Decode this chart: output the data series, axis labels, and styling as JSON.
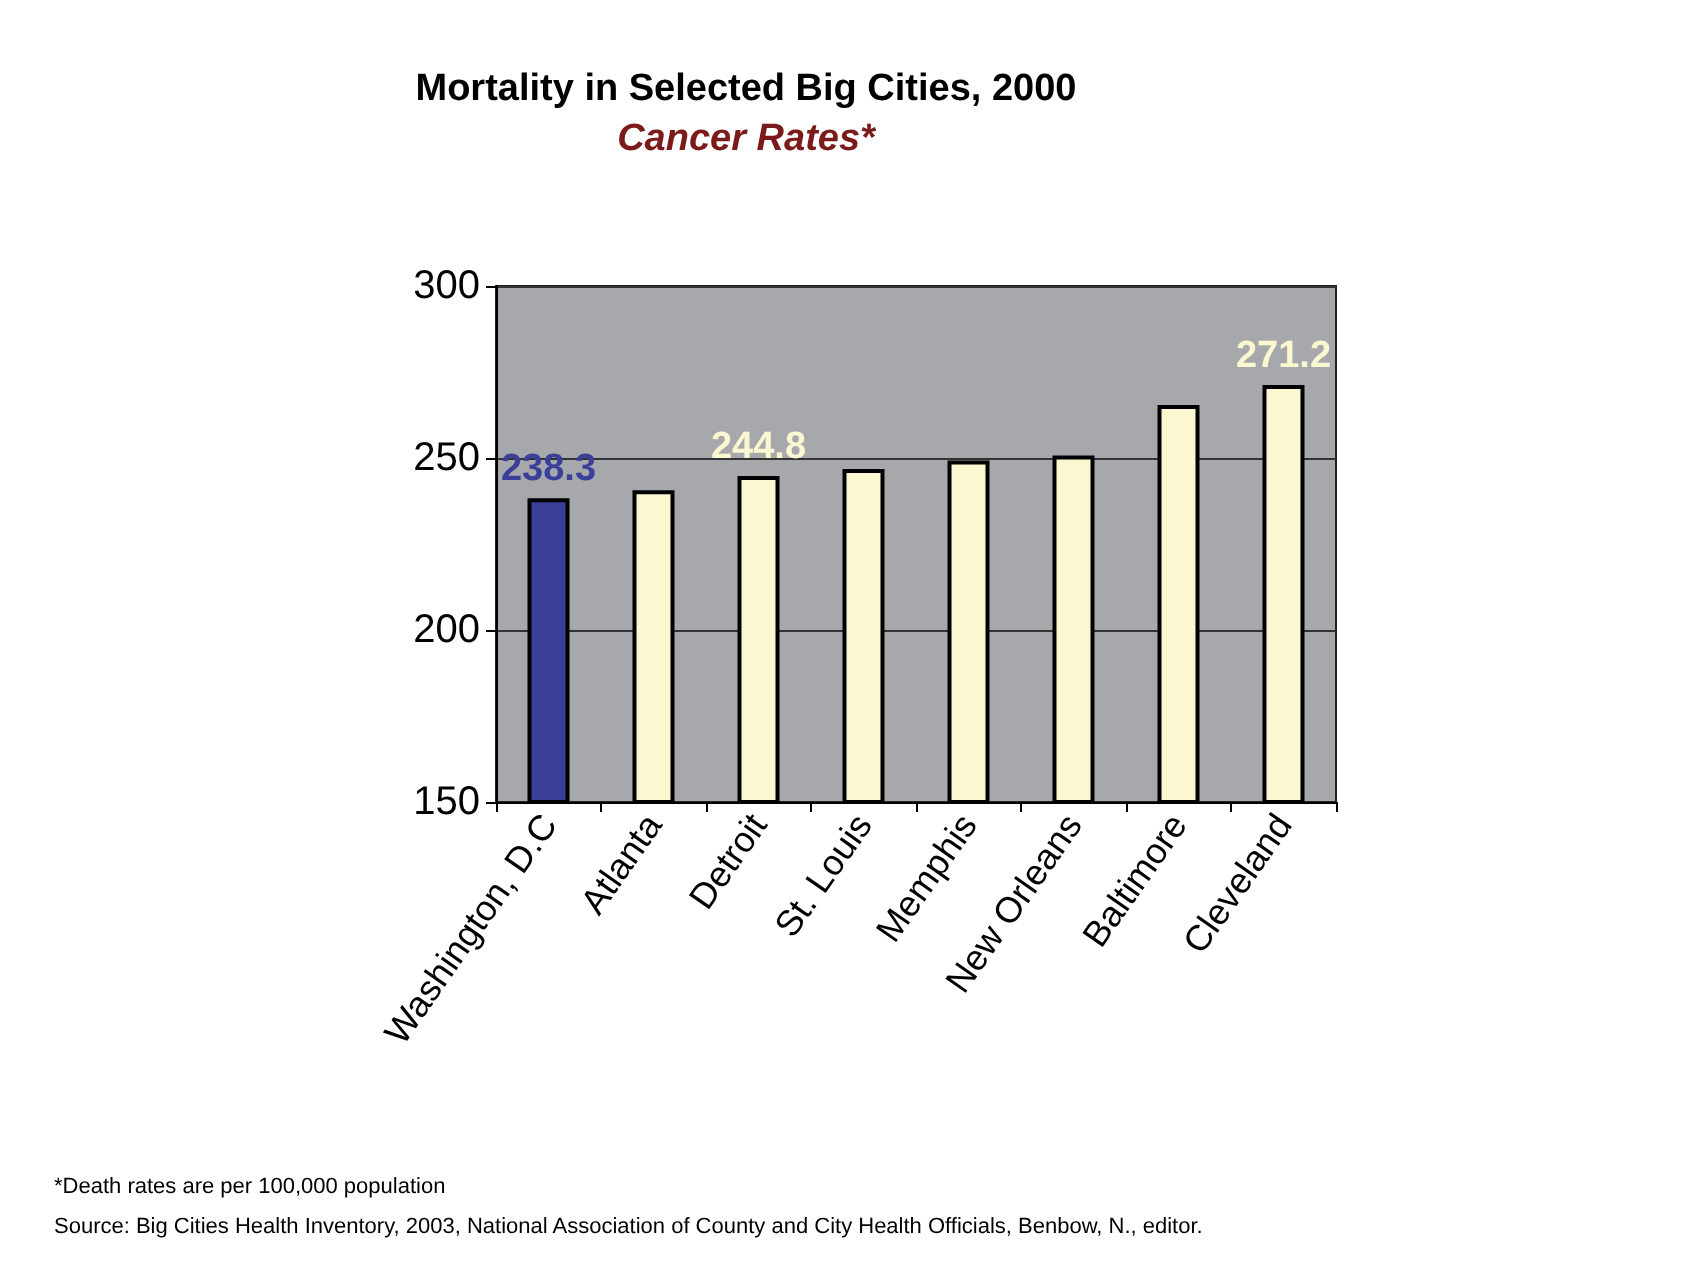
{
  "chart_data": {
    "type": "bar",
    "title": "Mortality in Selected Big Cities, 2000",
    "subtitle": "Cancer Rates*",
    "categories": [
      "Washington, D.C",
      "Atlanta",
      "Detroit",
      "St. Louis",
      "Memphis",
      "New Orleans",
      "Baltimore",
      "Cleveland"
    ],
    "values": [
      238.3,
      240.6,
      244.8,
      246.8,
      249.3,
      250.7,
      265.4,
      271.2
    ],
    "value_labels": [
      "238.3",
      null,
      "244.8",
      null,
      null,
      null,
      null,
      "271.2"
    ],
    "colors": [
      "#3a3f9a",
      "#fbf7d0",
      "#fbf7d0",
      "#fbf7d0",
      "#fbf7d0",
      "#fbf7d0",
      "#fbf7d0",
      "#fbf7d0"
    ],
    "ylim": [
      150,
      300
    ],
    "yticks": [
      150,
      200,
      250,
      300
    ],
    "grid": "y",
    "annotations": [
      "*Death rates are per 100,000 population",
      "Source: Big Cities Health Inventory, 2003, National Association of County and City Health Officials, Benbow, N., editor."
    ]
  }
}
